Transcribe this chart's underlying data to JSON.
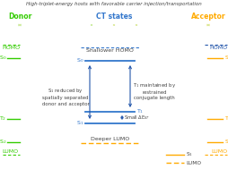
{
  "title": "High-triplet-energy hosts with favorable carrier injection/transportation",
  "donor_label": "Donor",
  "ct_label": "CT states",
  "acceptor_label": "Acceptor",
  "deeper_lumo": "Deeper LUMO",
  "shallower_homo": "Shallower HOMO",
  "bg_color": "#ffffff",
  "green": "#33cc00",
  "orange": "#ffaa00",
  "blue": "#3377cc",
  "dark_blue": "#2255aa",
  "text_color": "#444444"
}
